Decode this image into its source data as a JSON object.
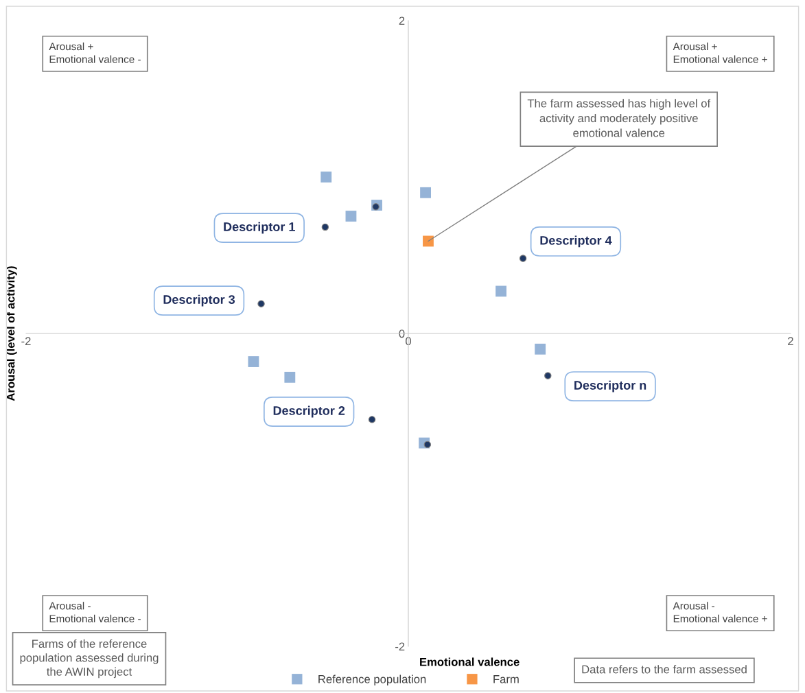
{
  "chart_data": {
    "type": "scatter",
    "xlabel": "Emotional valence",
    "ylabel": "Arousal (level of activity)",
    "xlim": [
      -2,
      2
    ],
    "ylim": [
      -2,
      2
    ],
    "xticks": [
      -2,
      0,
      2
    ],
    "yticks": [
      -2,
      0,
      2
    ],
    "grid": false,
    "legend": "bottom",
    "series": [
      {
        "color": "#1f3864",
        "marker": "circle",
        "x": [
          -0.435,
          -0.17,
          -0.77,
          -0.19,
          0.1,
          0.6,
          0.73
        ],
        "values": [
          0.68,
          0.81,
          0.19,
          -0.55,
          -0.71,
          0.48,
          -0.27
        ]
      },
      {
        "name": "Reference population",
        "color": "#95b3d7",
        "marker": "square",
        "x": [
          -0.43,
          -0.165,
          -0.3,
          0.09,
          0.485,
          0.69,
          -0.81,
          -0.62,
          0.083
        ],
        "values": [
          1.0,
          0.82,
          0.75,
          0.9,
          0.27,
          -0.1,
          -0.18,
          -0.28,
          -0.7
        ]
      },
      {
        "name": "Farm",
        "color": "#f79646",
        "marker": "square",
        "x": [
          0.104
        ],
        "values": [
          0.59
        ]
      }
    ],
    "annotations": [
      "Arousal +\nEmotional valence -",
      "Arousal +\nEmotional valence +",
      "Arousal -\nEmotional valence -",
      "Arousal -\nEmotional valence +",
      {
        "text": "The farm assessed has high level of\nactivity and moderately positive\nemotional valence",
        "x": 0.104,
        "y": 0.59
      },
      "Descriptor 1",
      "Descriptor 3",
      "Descriptor 2",
      "Descriptor 4",
      "Descriptor n",
      "Farms of the reference\npopulation assessed during\nthe AWIN project",
      "Data refers to the farm assessed"
    ]
  }
}
